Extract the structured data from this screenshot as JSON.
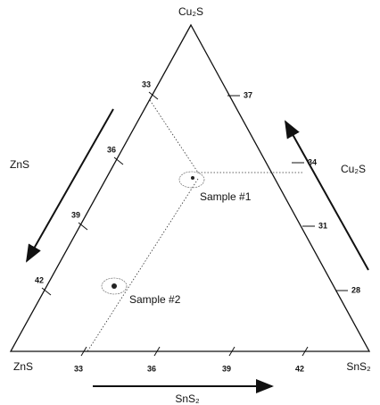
{
  "vertices": {
    "top": "Cu₂S",
    "left": "ZnS",
    "right": "SnS₂"
  },
  "arrows": {
    "left": "ZnS",
    "right": "Cu₂S",
    "bottom": "SnS₂"
  },
  "left_ticks": [
    "33",
    "36",
    "39",
    "42"
  ],
  "right_ticks": [
    "37",
    "34",
    "31",
    "28"
  ],
  "bottom_ticks": [
    "33",
    "36",
    "39",
    "42"
  ],
  "samples": [
    "Sample #1",
    "Sample #2"
  ]
}
